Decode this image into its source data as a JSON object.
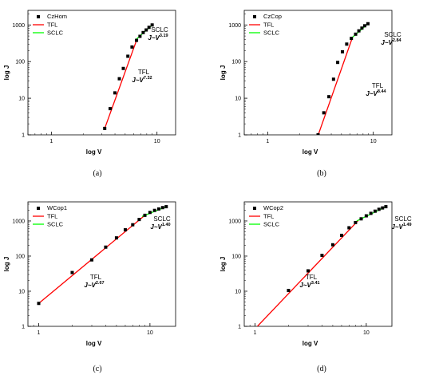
{
  "colors": {
    "tfl": "#ff0000",
    "sclc": "#00ff00",
    "marker": "#000000",
    "axis": "#000000"
  },
  "legend_labels": {
    "tfl": "TFL",
    "sclc": "SCLC"
  },
  "chart_data": [
    {
      "type": "scatter",
      "caption": "(a)",
      "xlabel": "log V",
      "ylabel": "log J",
      "xscale": "log",
      "yscale": "log",
      "xlim": [
        0.6,
        15
      ],
      "ylim": [
        1,
        2500
      ],
      "xticks": [
        1,
        10
      ],
      "xtick_labels": [
        "1",
        "10"
      ],
      "yticks": [
        1,
        10,
        100,
        1000
      ],
      "ytick_labels": [
        "1",
        "10",
        "100",
        "1000"
      ],
      "legend_position": "top-left",
      "series": [
        {
          "name": "CzHom",
          "kind": "markers",
          "x": [
            3.2,
            3.6,
            4.0,
            4.4,
            4.8,
            5.3,
            5.8,
            6.4,
            6.9,
            7.4,
            7.9,
            8.4,
            9.0
          ],
          "y": [
            1.5,
            5.2,
            14,
            34,
            65,
            140,
            250,
            380,
            490,
            620,
            730,
            860,
            1000
          ]
        },
        {
          "name": "TFL",
          "kind": "line",
          "x": [
            3.2,
            6.4
          ],
          "y": [
            1.5,
            380
          ]
        },
        {
          "name": "SCLC",
          "kind": "line",
          "x": [
            6.2,
            9.0
          ],
          "y": [
            380,
            1000
          ]
        }
      ],
      "annotations": [
        {
          "label": "TFL",
          "eq": "J~V",
          "exp": "7.32"
        },
        {
          "label": "SCLC",
          "eq": "J~V",
          "exp": "3.19"
        }
      ]
    },
    {
      "type": "scatter",
      "caption": "(b)",
      "xlabel": "log V",
      "ylabel": "log J",
      "xscale": "log",
      "yscale": "log",
      "xlim": [
        0.6,
        15
      ],
      "ylim": [
        1,
        2500
      ],
      "xticks": [
        1,
        10
      ],
      "xtick_labels": [
        "1",
        "10"
      ],
      "yticks": [
        1,
        10,
        100,
        1000
      ],
      "ytick_labels": [
        "1",
        "10",
        "100",
        "1000"
      ],
      "legend_position": "top-left",
      "series": [
        {
          "name": "CzCop",
          "kind": "markers",
          "x": [
            3.0,
            3.4,
            3.8,
            4.2,
            4.6,
            5.1,
            5.6,
            6.2,
            6.8,
            7.3,
            7.8,
            8.3,
            8.9
          ],
          "y": [
            1.0,
            4.0,
            11,
            33,
            95,
            185,
            300,
            430,
            560,
            690,
            820,
            950,
            1080
          ]
        },
        {
          "name": "TFL",
          "kind": "line",
          "x": [
            2.8,
            6.3
          ],
          "y": [
            0.55,
            430
          ]
        },
        {
          "name": "SCLC",
          "kind": "line",
          "x": [
            6.0,
            8.9
          ],
          "y": [
            400,
            1080
          ]
        }
      ],
      "annotations": [
        {
          "label": "TFL",
          "eq": "J~V",
          "exp": "8.44"
        },
        {
          "label": "SCLC",
          "eq": "J~V",
          "exp": "2.84"
        }
      ]
    },
    {
      "type": "scatter",
      "caption": "(c)",
      "xlabel": "log V",
      "ylabel": "log J",
      "xscale": "log",
      "yscale": "log",
      "xlim": [
        0.8,
        17
      ],
      "ylim": [
        1,
        3500
      ],
      "xticks": [
        1,
        10
      ],
      "xtick_labels": [
        "1",
        "10"
      ],
      "yticks": [
        1,
        10,
        100,
        1000
      ],
      "ytick_labels": [
        "1",
        "10",
        "100",
        "1000"
      ],
      "legend_position": "top-left",
      "series": [
        {
          "name": "WCop1",
          "kind": "markers",
          "x": [
            1.0,
            2.0,
            3.0,
            4.0,
            5.0,
            6.0,
            7.0,
            8.0,
            9.0,
            10.0,
            11.0,
            12.0,
            13.0,
            14.0
          ],
          "y": [
            4.5,
            34,
            78,
            180,
            330,
            560,
            780,
            1100,
            1450,
            1750,
            2000,
            2200,
            2400,
            2550
          ]
        },
        {
          "name": "TFL",
          "kind": "line",
          "x": [
            1.0,
            9.0
          ],
          "y": [
            4.5,
            1450
          ]
        },
        {
          "name": "SCLC",
          "kind": "line",
          "x": [
            8.5,
            14.0
          ],
          "y": [
            1350,
            2550
          ]
        }
      ],
      "annotations": [
        {
          "label": "TFL",
          "eq": "J~V",
          "exp": "2.67"
        },
        {
          "label": "SCLC",
          "eq": "J~V",
          "exp": "1.40"
        }
      ]
    },
    {
      "type": "scatter",
      "caption": "(d)",
      "xlabel": "log V",
      "ylabel": "log J",
      "xscale": "log",
      "yscale": "log",
      "xlim": [
        0.8,
        17
      ],
      "ylim": [
        1,
        3500
      ],
      "xticks": [
        1,
        10
      ],
      "xtick_labels": [
        "1",
        "10"
      ],
      "yticks": [
        1,
        10,
        100,
        1000
      ],
      "ytick_labels": [
        "1",
        "10",
        "100",
        "1000"
      ],
      "legend_position": "top-left",
      "series": [
        {
          "name": "WCop2",
          "kind": "markers",
          "x": [
            2.0,
            3.0,
            4.0,
            5.0,
            6.0,
            7.0,
            8.0,
            9.0,
            10.0,
            11.0,
            12.0,
            13.0,
            14.0,
            15.0
          ],
          "y": [
            10.5,
            38,
            105,
            210,
            390,
            640,
            900,
            1150,
            1400,
            1650,
            1900,
            2150,
            2350,
            2550
          ]
        },
        {
          "name": "TFL",
          "kind": "line",
          "x": [
            1.05,
            8.5
          ],
          "y": [
            1.0,
            1050
          ]
        },
        {
          "name": "SCLC",
          "kind": "line",
          "x": [
            8.2,
            15.0
          ],
          "y": [
            1000,
            2550
          ]
        }
      ],
      "annotations": [
        {
          "label": "TFL",
          "eq": "J~V",
          "exp": "3.41"
        },
        {
          "label": "SCLC",
          "eq": "J~V",
          "exp": "1.49"
        }
      ]
    }
  ]
}
